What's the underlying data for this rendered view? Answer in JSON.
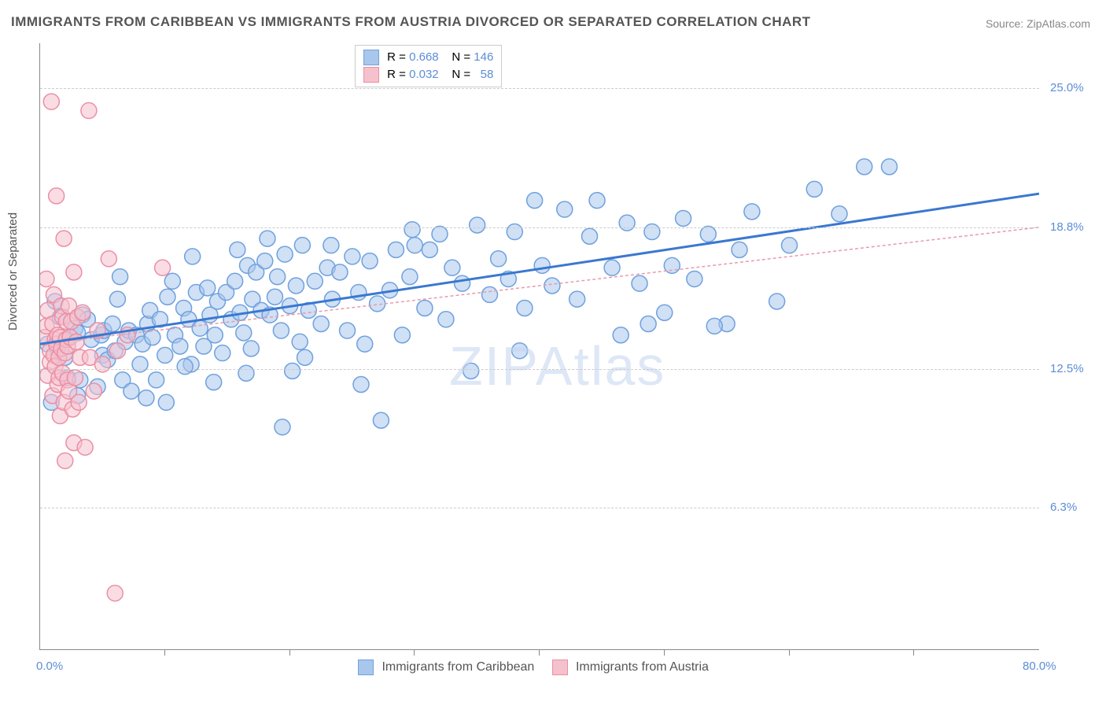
{
  "title": "IMMIGRANTS FROM CARIBBEAN VS IMMIGRANTS FROM AUSTRIA DIVORCED OR SEPARATED CORRELATION CHART",
  "source": "Source: ZipAtlas.com",
  "watermark": "ZIPAtlas",
  "ylabel": "Divorced or Separated",
  "chart": {
    "type": "scatter_with_regression",
    "xlim": [
      0,
      80
    ],
    "ylim": [
      0,
      27
    ],
    "x_axis_color": "#888888",
    "y_axis_color": "#888888",
    "grid_color": "#cccccc",
    "background_color": "#ffffff",
    "x_ticks": [
      10,
      20,
      30,
      40,
      50,
      60,
      70
    ],
    "x_start_label": "0.0%",
    "x_end_label": "80.0%",
    "y_tick_labels": [
      {
        "v": 6.3,
        "label": "6.3%"
      },
      {
        "v": 12.5,
        "label": "12.5%"
      },
      {
        "v": 18.8,
        "label": "18.8%"
      },
      {
        "v": 25.0,
        "label": "25.0%"
      }
    ],
    "tick_label_color": "#5b8dd6",
    "marker_radius": 10,
    "marker_opacity": 0.55,
    "series_a": {
      "name": "Immigrants from Caribbean",
      "fill": "#a9c7ec",
      "stroke": "#6fa1de",
      "line_color": "#3a78d0",
      "line_width": 3,
      "line_dash": "none",
      "R": "0.668",
      "N": "146",
      "reg": {
        "x1": 0,
        "y1": 13.6,
        "x2": 80,
        "y2": 20.3
      },
      "points": [
        [
          0.6,
          13.6
        ],
        [
          1.4,
          13.4
        ],
        [
          1.6,
          14.8
        ],
        [
          2,
          13.0
        ],
        [
          2,
          13.8
        ],
        [
          2.2,
          12.1
        ],
        [
          2.8,
          14.3
        ],
        [
          3,
          14.1
        ],
        [
          3.2,
          12.0
        ],
        [
          3.4,
          14.9
        ],
        [
          3.8,
          14.7
        ],
        [
          4.1,
          13.8
        ],
        [
          4.9,
          14.0
        ],
        [
          5.0,
          13.1
        ],
        [
          5.1,
          14.2
        ],
        [
          5.4,
          12.9
        ],
        [
          5.8,
          14.5
        ],
        [
          6.0,
          13.3
        ],
        [
          6.2,
          15.6
        ],
        [
          6.6,
          12.0
        ],
        [
          6.8,
          13.7
        ],
        [
          7.1,
          14.2
        ],
        [
          7.3,
          11.5
        ],
        [
          7.7,
          14.0
        ],
        [
          8.0,
          12.7
        ],
        [
          8.2,
          13.6
        ],
        [
          8.6,
          14.5
        ],
        [
          8.8,
          15.1
        ],
        [
          9.0,
          13.9
        ],
        [
          9.3,
          12.0
        ],
        [
          9.6,
          14.7
        ],
        [
          10.0,
          13.1
        ],
        [
          10.2,
          15.7
        ],
        [
          10.6,
          16.4
        ],
        [
          10.8,
          14.0
        ],
        [
          11.2,
          13.5
        ],
        [
          11.5,
          15.2
        ],
        [
          11.9,
          14.7
        ],
        [
          12.1,
          12.7
        ],
        [
          12.5,
          15.9
        ],
        [
          12.8,
          14.3
        ],
        [
          13.1,
          13.5
        ],
        [
          13.4,
          16.1
        ],
        [
          13.6,
          14.9
        ],
        [
          14.0,
          14.0
        ],
        [
          14.2,
          15.5
        ],
        [
          14.6,
          13.2
        ],
        [
          14.9,
          15.9
        ],
        [
          15.3,
          14.7
        ],
        [
          15.6,
          16.4
        ],
        [
          16.0,
          15.0
        ],
        [
          16.3,
          14.1
        ],
        [
          16.6,
          17.1
        ],
        [
          16.9,
          13.4
        ],
        [
          17.0,
          15.6
        ],
        [
          17.3,
          16.8
        ],
        [
          17.7,
          15.1
        ],
        [
          18.0,
          17.3
        ],
        [
          18.4,
          14.9
        ],
        [
          18.8,
          15.7
        ],
        [
          19.0,
          16.6
        ],
        [
          19.3,
          14.2
        ],
        [
          19.6,
          17.6
        ],
        [
          20.0,
          15.3
        ],
        [
          20.5,
          16.2
        ],
        [
          20.8,
          13.7
        ],
        [
          21.0,
          18.0
        ],
        [
          21.5,
          15.1
        ],
        [
          22.0,
          16.4
        ],
        [
          22.5,
          14.5
        ],
        [
          23.0,
          17.0
        ],
        [
          23.4,
          15.6
        ],
        [
          24.0,
          16.8
        ],
        [
          24.6,
          14.2
        ],
        [
          25.0,
          17.5
        ],
        [
          25.5,
          15.9
        ],
        [
          26.0,
          13.6
        ],
        [
          26.4,
          17.3
        ],
        [
          27.0,
          15.4
        ],
        [
          27.3,
          10.2
        ],
        [
          28.0,
          16.0
        ],
        [
          28.5,
          17.8
        ],
        [
          29.0,
          14.0
        ],
        [
          29.6,
          16.6
        ],
        [
          30.0,
          18.0
        ],
        [
          30.8,
          15.2
        ],
        [
          31.2,
          17.8
        ],
        [
          32.0,
          18.5
        ],
        [
          32.5,
          14.7
        ],
        [
          33.0,
          17.0
        ],
        [
          33.8,
          16.3
        ],
        [
          34.5,
          12.4
        ],
        [
          35.0,
          18.9
        ],
        [
          36.0,
          15.8
        ],
        [
          36.7,
          17.4
        ],
        [
          37.5,
          16.5
        ],
        [
          38.0,
          18.6
        ],
        [
          38.8,
          15.2
        ],
        [
          39.6,
          20.0
        ],
        [
          40.2,
          17.1
        ],
        [
          41.0,
          16.2
        ],
        [
          42.0,
          19.6
        ],
        [
          43.0,
          15.6
        ],
        [
          44.0,
          18.4
        ],
        [
          44.6,
          20.0
        ],
        [
          45.8,
          17.0
        ],
        [
          46.5,
          14.0
        ],
        [
          47.0,
          19.0
        ],
        [
          48.0,
          16.3
        ],
        [
          49.0,
          18.6
        ],
        [
          50.0,
          15.0
        ],
        [
          50.6,
          17.1
        ],
        [
          51.5,
          19.2
        ],
        [
          52.4,
          16.5
        ],
        [
          53.5,
          18.5
        ],
        [
          55.0,
          14.5
        ],
        [
          56.0,
          17.8
        ],
        [
          57.0,
          19.5
        ],
        [
          59.0,
          15.5
        ],
        [
          60.0,
          18.0
        ],
        [
          62.0,
          20.5
        ],
        [
          64.0,
          19.4
        ],
        [
          66.0,
          21.5
        ],
        [
          68.0,
          21.5
        ],
        [
          19.4,
          9.9
        ],
        [
          25.7,
          11.8
        ],
        [
          8.5,
          11.2
        ],
        [
          13.9,
          11.9
        ],
        [
          18.2,
          18.3
        ],
        [
          23.3,
          18.0
        ],
        [
          29.8,
          18.7
        ],
        [
          38.4,
          13.3
        ],
        [
          48.7,
          14.5
        ],
        [
          54.0,
          14.4
        ],
        [
          12.2,
          17.5
        ],
        [
          15.8,
          17.8
        ],
        [
          21.2,
          13.0
        ],
        [
          6.4,
          16.6
        ],
        [
          4.6,
          11.7
        ],
        [
          3.0,
          11.3
        ],
        [
          1.2,
          15.5
        ],
        [
          0.9,
          11.0
        ],
        [
          10.1,
          11.0
        ],
        [
          11.6,
          12.6
        ],
        [
          16.5,
          12.3
        ],
        [
          20.2,
          12.4
        ]
      ]
    },
    "series_b": {
      "name": "Immigrants from Austria",
      "fill": "#f5c1cd",
      "stroke": "#eb8fa3",
      "line_color": "#e89aac",
      "line_width": 1.5,
      "line_dash": "4 3",
      "R": "0.032",
      "N": "58",
      "reg": {
        "x1": 0,
        "y1": 13.6,
        "x2": 80,
        "y2": 18.8
      },
      "points": [
        [
          0.4,
          13.9
        ],
        [
          0.5,
          14.4
        ],
        [
          0.6,
          12.2
        ],
        [
          0.6,
          15.1
        ],
        [
          0.8,
          12.8
        ],
        [
          0.8,
          13.3
        ],
        [
          0.9,
          24.4
        ],
        [
          1.0,
          11.3
        ],
        [
          1.0,
          14.5
        ],
        [
          1.1,
          13.1
        ],
        [
          1.1,
          15.8
        ],
        [
          1.2,
          13.8
        ],
        [
          1.2,
          12.6
        ],
        [
          1.3,
          20.2
        ],
        [
          1.3,
          13.6
        ],
        [
          1.4,
          11.8
        ],
        [
          1.4,
          14.0
        ],
        [
          1.5,
          13.0
        ],
        [
          1.5,
          12.1
        ],
        [
          1.6,
          13.9
        ],
        [
          1.6,
          10.4
        ],
        [
          1.7,
          15.3
        ],
        [
          1.7,
          13.4
        ],
        [
          1.8,
          12.3
        ],
        [
          1.8,
          14.8
        ],
        [
          1.9,
          11.0
        ],
        [
          1.9,
          18.3
        ],
        [
          2.0,
          13.2
        ],
        [
          2.0,
          8.4
        ],
        [
          2.1,
          13.8
        ],
        [
          2.1,
          14.6
        ],
        [
          2.2,
          12.0
        ],
        [
          2.2,
          13.5
        ],
        [
          2.3,
          15.3
        ],
        [
          2.3,
          11.5
        ],
        [
          2.4,
          13.9
        ],
        [
          2.5,
          14.6
        ],
        [
          2.6,
          10.7
        ],
        [
          2.7,
          9.2
        ],
        [
          2.7,
          16.8
        ],
        [
          2.8,
          12.1
        ],
        [
          2.9,
          13.7
        ],
        [
          3.0,
          14.8
        ],
        [
          3.1,
          11.0
        ],
        [
          3.2,
          13.0
        ],
        [
          3.4,
          15.0
        ],
        [
          3.6,
          9.0
        ],
        [
          3.9,
          24.0
        ],
        [
          4.0,
          13.0
        ],
        [
          4.3,
          11.5
        ],
        [
          4.6,
          14.2
        ],
        [
          5.0,
          12.7
        ],
        [
          5.5,
          17.4
        ],
        [
          6.0,
          2.5
        ],
        [
          6.2,
          13.3
        ],
        [
          7.0,
          14.0
        ],
        [
          9.8,
          17.0
        ],
        [
          0.5,
          16.5
        ]
      ]
    }
  },
  "legend_top": {
    "row1": {
      "r_label": "R =",
      "n_label": "N ="
    },
    "row2": {
      "r_label": "R =",
      "n_label": "N ="
    }
  },
  "legend_bottom": {
    "a_label": "Immigrants from Caribbean",
    "b_label": "Immigrants from Austria"
  }
}
